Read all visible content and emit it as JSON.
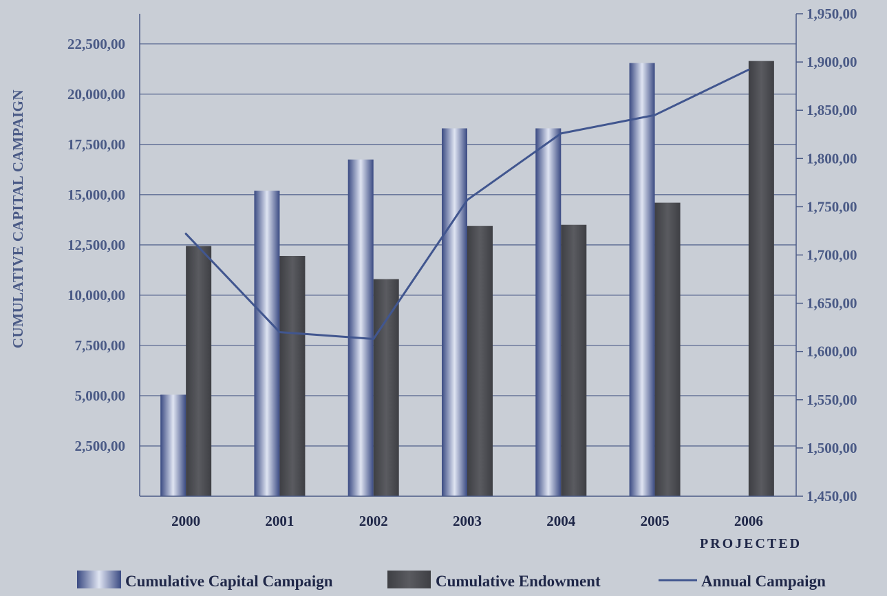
{
  "colors": {
    "background": "#c9ced6",
    "axis": "#4a5a86",
    "gridline": "#4e5e8a",
    "tick_text": "#4a5a86",
    "category_text": "#1f2748",
    "capital_bar_dark": "#3a4a82",
    "capital_bar_light": "#dfe4f2",
    "endowment_bar": "#3e3f44",
    "endowment_bar_light": "#5a5b60",
    "annual_line": "#41568f"
  },
  "chart_data": {
    "type": "bar",
    "ylabel": "CUMULATIVE CAPITAL CAMPAIGN",
    "xlabel": "",
    "categories": [
      "2000",
      "2001",
      "2002",
      "2003",
      "2004",
      "2005",
      "2006"
    ],
    "category_note": {
      "category": "2006",
      "text": "PROJECTED"
    },
    "ylim": [
      0,
      24000
    ],
    "y_ticks": [
      2500,
      5000,
      7500,
      10000,
      12500,
      15000,
      17500,
      20000,
      22500
    ],
    "y_tick_labels": [
      "2,500,00",
      "5,000,00",
      "7,500,00",
      "10,000,00",
      "12,500,00",
      "15,000,00",
      "17,500,00",
      "20,000,00",
      "22,500,00"
    ],
    "y2lim": [
      1450,
      1950
    ],
    "y2_ticks": [
      1450,
      1500,
      1550,
      1600,
      1650,
      1700,
      1750,
      1800,
      1850,
      1900,
      1950
    ],
    "y2_tick_labels": [
      "1,450,00",
      "1,500,00",
      "1,550,00",
      "1,600,00",
      "1,650,00",
      "1,700,00",
      "1,750,00",
      "1,800,00",
      "1,850,00",
      "1,900,00",
      "1,950,00"
    ],
    "grid": true,
    "legend_position": "bottom",
    "series": [
      {
        "name": "Cumulative Capital Campaign",
        "type": "bar",
        "axis": "left",
        "values": [
          5050,
          15200,
          16750,
          18300,
          18300,
          21550,
          null
        ]
      },
      {
        "name": "Cumulative Endowment",
        "type": "bar",
        "axis": "left",
        "values": [
          12450,
          11950,
          10800,
          13450,
          13500,
          14600,
          21650
        ]
      },
      {
        "name": "Annual Campaign",
        "type": "line",
        "axis": "right",
        "values": [
          1722,
          1620,
          1613,
          1757,
          1826,
          1845,
          1892
        ]
      }
    ]
  }
}
